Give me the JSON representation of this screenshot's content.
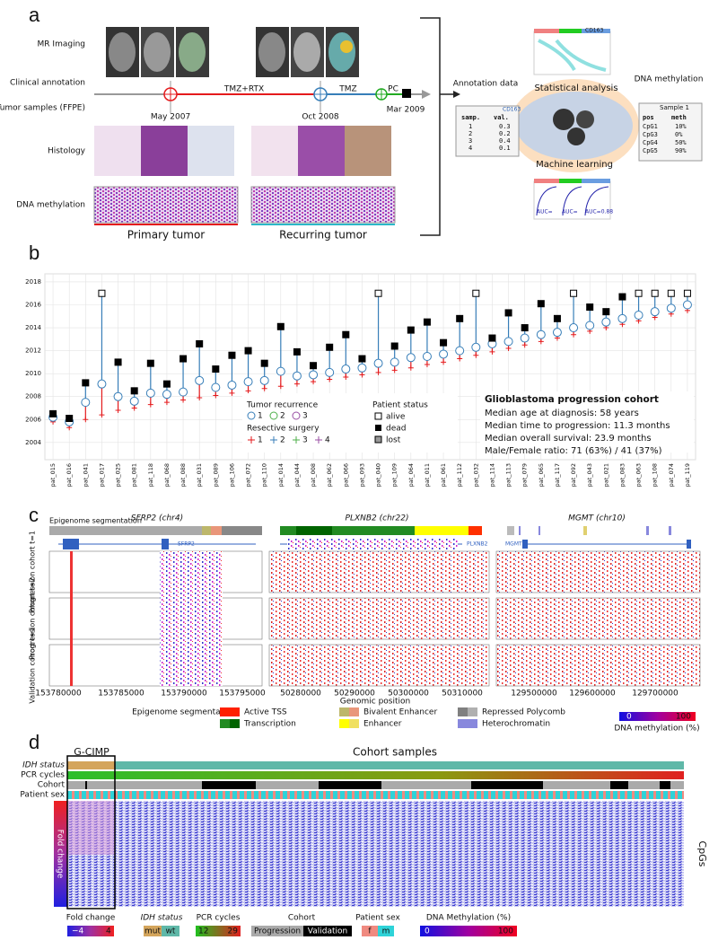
{
  "panel_a": {
    "letter": "a",
    "labels": [
      "MR Imaging",
      "Clinical annotation",
      "Tumor samples (FFPE)",
      "Histology",
      "DNA methylation"
    ],
    "therapy": [
      "TMZ+RTX",
      "TMZ",
      "PC"
    ],
    "dates": [
      "May 2007",
      "Oct 2008",
      "Mar 2009"
    ],
    "captions": [
      "Primary tumor",
      "Recurring tumor"
    ],
    "annotation": {
      "title": "Annotation data",
      "tag": "CD163",
      "header": [
        "samp.",
        "val."
      ],
      "rows": [
        [
          "1",
          "0.3"
        ],
        [
          "2",
          "0.2"
        ],
        [
          "3",
          "0.4"
        ],
        [
          "4",
          "0.1"
        ]
      ]
    },
    "analysis": [
      "Statistical analysis",
      "Machine learning"
    ],
    "chart_tag": "CD163",
    "methylation": {
      "title": "DNA methylation",
      "sample": "Sample 1",
      "header": [
        "pos",
        "meth"
      ],
      "rows": [
        [
          "CpG1",
          "10%"
        ],
        [
          "CpG3",
          "0%"
        ],
        [
          "CpG4",
          "50%"
        ],
        [
          "CpG5",
          "90%"
        ]
      ]
    },
    "auc": [
      "AUC=",
      "AUC=",
      "AUC=0.88"
    ]
  },
  "panel_b": {
    "letter": "b",
    "chart_data": {
      "type": "lollipop",
      "ylim": [
        2002.5,
        2018.7
      ],
      "yticks": [
        2004,
        2006,
        2008,
        2010,
        2012,
        2014,
        2016,
        2018
      ],
      "grid": true,
      "patients": [
        "pat_015",
        "pat_016",
        "pat_041",
        "pat_017",
        "pat_025",
        "pat_081",
        "pat_118",
        "pat_068",
        "pat_088",
        "pat_031",
        "pat_089",
        "pat_106",
        "pat_072",
        "pat_110",
        "pat_014",
        "pat_044",
        "pat_008",
        "pat_062",
        "pat_066",
        "pat_093",
        "pat_040",
        "pat_109",
        "pat_064",
        "pat_011",
        "pat_061",
        "pat_112",
        "pat_032",
        "pat_114",
        "pat_113",
        "pat_079",
        "pat_065",
        "pat_117",
        "pat_092",
        "pat_043",
        "pat_021",
        "pat_083",
        "pat_063",
        "pat_108",
        "pat_074",
        "pat_119"
      ],
      "diagnosis": [
        2005.8,
        2005.3,
        2006.0,
        2006.4,
        2006.8,
        2007.0,
        2007.3,
        2007.5,
        2007.7,
        2007.9,
        2008.1,
        2008.3,
        2008.5,
        2008.7,
        2008.9,
        2009.1,
        2009.3,
        2009.5,
        2009.7,
        2009.9,
        2010.1,
        2010.3,
        2010.5,
        2010.8,
        2011.0,
        2011.3,
        2011.6,
        2011.9,
        2012.2,
        2012.5,
        2012.8,
        2013.1,
        2013.4,
        2013.7,
        2014.0,
        2014.3,
        2014.6,
        2014.9,
        2015.2,
        2015.5
      ],
      "recurrence": [
        2006.2,
        2005.8,
        2007.5,
        2009.1,
        2008.0,
        2007.6,
        2008.3,
        2008.2,
        2008.4,
        2009.4,
        2008.8,
        2009.0,
        2009.3,
        2009.4,
        2010.2,
        2009.8,
        2009.9,
        2010.1,
        2010.4,
        2010.5,
        2010.9,
        2011.0,
        2011.4,
        2011.5,
        2011.7,
        2012.0,
        2012.3,
        2012.6,
        2012.8,
        2013.1,
        2013.4,
        2013.6,
        2014.0,
        2014.2,
        2014.5,
        2014.8,
        2015.1,
        2015.4,
        2015.7,
        2016.0
      ],
      "followup": [
        2006.5,
        2006.1,
        2009.2,
        2017.0,
        2011.0,
        2008.5,
        2010.9,
        2009.1,
        2011.3,
        2012.6,
        2010.4,
        2011.6,
        2012.0,
        2010.9,
        2014.1,
        2011.9,
        2010.7,
        2012.3,
        2013.4,
        2011.3,
        2017.0,
        2012.4,
        2013.8,
        2014.5,
        2012.7,
        2014.8,
        2017.0,
        2013.1,
        2015.3,
        2014.0,
        2016.1,
        2014.8,
        2017.0,
        2015.8,
        2015.4,
        2016.7,
        2017.0,
        2017.0,
        2017.0,
        2017.0
      ],
      "status": [
        "dead",
        "dead",
        "dead",
        "alive",
        "dead",
        "dead",
        "dead",
        "dead",
        "dead",
        "dead",
        "dead",
        "dead",
        "dead",
        "dead",
        "dead",
        "dead",
        "dead",
        "dead",
        "dead",
        "dead",
        "alive",
        "dead",
        "dead",
        "dead",
        "dead",
        "dead",
        "alive",
        "dead",
        "dead",
        "dead",
        "dead",
        "dead",
        "alive",
        "dead",
        "dead",
        "dead",
        "alive",
        "alive",
        "alive",
        "alive"
      ],
      "colors": {
        "diagnosis": "#e41a1c",
        "recurrence": "#377eb8"
      }
    },
    "legend": {
      "recurrence_title": "Tumor recurrence",
      "recurrence": [
        "1",
        "2",
        "3"
      ],
      "surgery_title": "Resective surgery",
      "surgery": [
        "1",
        "2",
        "3",
        "4"
      ],
      "status_title": "Patient status",
      "status": [
        "alive",
        "dead",
        "lost"
      ]
    },
    "stats": {
      "title": "Glioblastoma progression cohort",
      "lines": [
        "Median age at diagnosis: 58 years",
        "Median time to progression: 11.3 months",
        "Median overall survival: 23.9 months",
        "Male/Female ratio: 71 (63%) / 41 (37%)"
      ]
    }
  },
  "panel_c": {
    "letter": "c",
    "segmentation_label": "Epigenome segmentation",
    "genes": [
      "SFRP2 (chr4)",
      "PLXNB2 (chr22)",
      "MGMT (chr10)"
    ],
    "gene_models": [
      "SFRP2",
      "PLXNB2",
      "MGMT"
    ],
    "rows": [
      "Progression cohort t=1",
      "Progression cohort t=2",
      "Validation cohort t=1"
    ],
    "xticks": [
      [
        "153780000",
        "153785000",
        "153790000",
        "153795000"
      ],
      [
        "50280000",
        "50290000",
        "50300000",
        "50310000"
      ],
      [
        "129500000",
        "129600000",
        "129700000"
      ]
    ],
    "xlabel": "Genomic position",
    "legend": {
      "title": "Epigenome segmentation",
      "states": [
        "Active TSS",
        "Transcription",
        "Bivalent Enhancer",
        "Enhancer",
        "Repressed Polycomb",
        "Heterochromatin"
      ],
      "scale": [
        "0",
        "100"
      ],
      "scale_title": "DNA methylation (%)"
    }
  },
  "panel_d": {
    "letter": "d",
    "gcimp": "G-CIMP",
    "cohort_samples": "Cohort samples",
    "rows": [
      "IDH status",
      "PCR cycles",
      "Cohort",
      "Patient sex"
    ],
    "fold_change": "Fold change",
    "cpgs": "CpGs",
    "legend": {
      "fold_title": "Fold change",
      "fold": [
        "−4",
        "4"
      ],
      "idh_title": "IDH status",
      "idh": [
        "mut",
        "wt"
      ],
      "pcr_title": "PCR cycles",
      "pcr": [
        "12",
        "29"
      ],
      "cohort_title": "Cohort",
      "cohort": [
        "Progression",
        "Validation"
      ],
      "sex_title": "Patient sex",
      "sex": [
        "f",
        "m"
      ],
      "meth_title": "DNA Methylation (%)",
      "meth": [
        "0",
        "100"
      ]
    }
  }
}
